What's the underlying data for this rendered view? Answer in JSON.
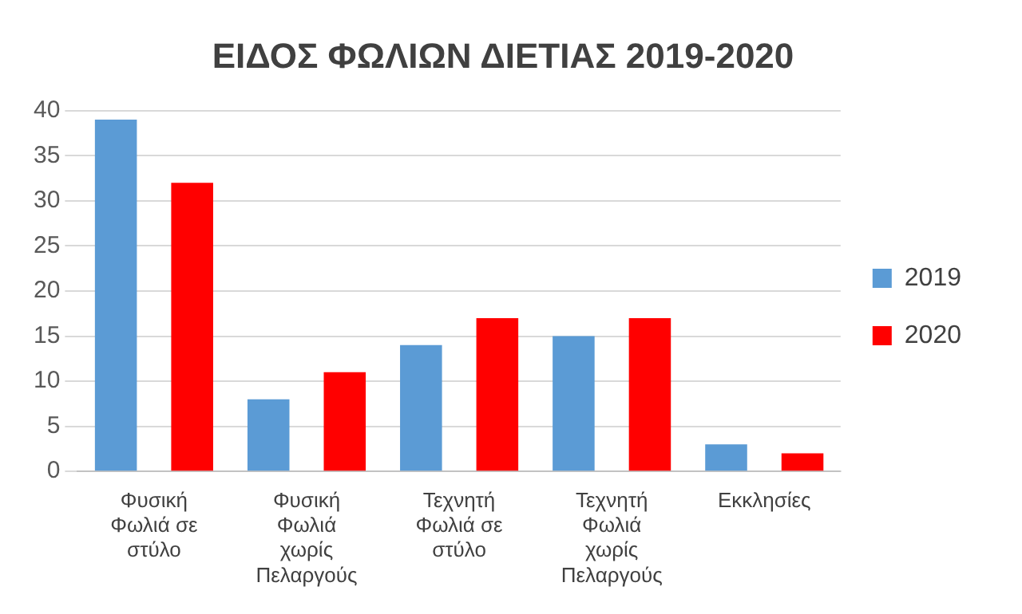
{
  "chart_data": {
    "type": "bar",
    "title": "ΕΙΔΟΣ ΦΩΛΙΩΝ ΔΙΕΤΙΑΣ 2019-2020",
    "categories": [
      "Φυσική Φωλιά σε στύλο",
      "Φυσική Φωλιά χωρίς Πελαργούς",
      "Τεχνητή Φωλιά σε στύλο",
      "Τεχνητή Φωλιά χωρίς Πελαργούς",
      "Εκκλησίες"
    ],
    "series": [
      {
        "name": "2019",
        "color": "#5b9bd5",
        "values": [
          39,
          8,
          14,
          15,
          3
        ]
      },
      {
        "name": "2020",
        "color": "#ff0000",
        "values": [
          32,
          11,
          17,
          17,
          2
        ]
      }
    ],
    "ylim": [
      0,
      40
    ],
    "yticks": [
      0,
      5,
      10,
      15,
      20,
      25,
      30,
      35,
      40
    ],
    "grid": "y",
    "legend": "right"
  }
}
